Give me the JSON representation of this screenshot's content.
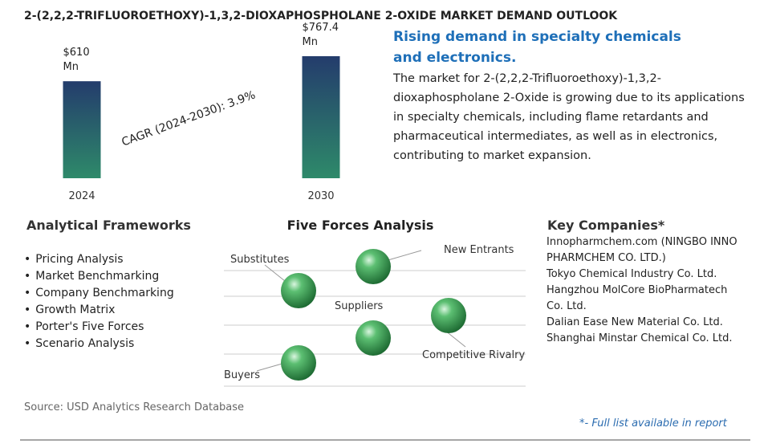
{
  "title": "2-(2,2,2-TRIFLUOROETHOXY)-1,3,2-DIOXAPHOSPHOLANE 2-OXIDE MARKET DEMAND OUTLOOK",
  "chart_data": {
    "type": "bar",
    "categories": [
      "2024",
      "2030"
    ],
    "values": [
      610,
      767.4
    ],
    "value_labels": [
      "$610 Mn",
      "$767.4 Mn"
    ],
    "annotation": "CAGR (2024-2030):  3.9%",
    "colors": [
      "#2e8a6a",
      "#243c6c"
    ]
  },
  "summary": {
    "heading": "Rising demand in specialty chemicals and electronics.",
    "text": "The market for 2-(2,2,2-Trifluoroethoxy)-1,3,2-dioxaphospholane 2-Oxide is growing due to its applications in specialty chemicals, including flame retardants and pharmaceutical intermediates, as well as in electronics, contributing to market expansion."
  },
  "frameworks": {
    "heading": "Analytical Frameworks",
    "items": [
      "Pricing Analysis",
      "Market Benchmarking",
      "Company Benchmarking",
      "Growth Matrix",
      "Porter's Five Forces",
      "Scenario Analysis"
    ]
  },
  "five_forces": {
    "heading": "Five Forces Analysis",
    "labels": [
      "Substitutes",
      "New Entrants",
      "Suppliers",
      "Competitive Rivalry",
      "Buyers"
    ]
  },
  "companies": {
    "heading": "Key Companies*",
    "items": [
      "Innopharmchem.com (NINGBO INNO PHARMCHEM CO. LTD.)",
      "Tokyo Chemical Industry Co. Ltd.",
      "Hangzhou MolCore BioPharmatech Co. Ltd.",
      "Dalian Ease New Material Co. Ltd.",
      "Shanghai Minstar Chemical Co. Ltd."
    ]
  },
  "source": "Source: USD Analytics Research Database",
  "footnote": "*- Full list available in report"
}
